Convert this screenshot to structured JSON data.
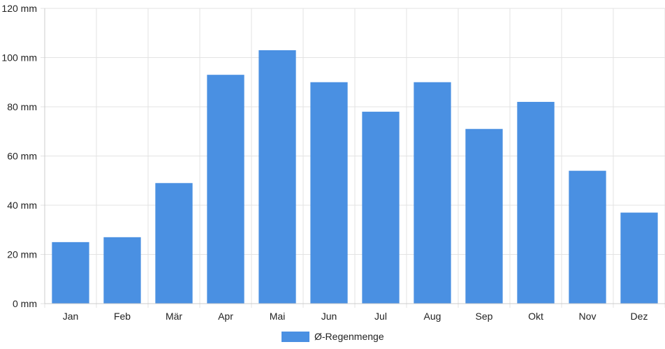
{
  "chart_data": {
    "type": "bar",
    "categories": [
      "Jan",
      "Feb",
      "Mär",
      "Apr",
      "Mai",
      "Jun",
      "Jul",
      "Aug",
      "Sep",
      "Okt",
      "Nov",
      "Dez"
    ],
    "series": [
      {
        "name": "Ø-Regenmenge",
        "color": "#4a90e2",
        "values": [
          25,
          27,
          49,
          93,
          103,
          90,
          78,
          90,
          71,
          82,
          54,
          37
        ]
      }
    ],
    "y_ticks": [
      "0 mm",
      "20 mm",
      "40 mm",
      "60 mm",
      "80 mm",
      "100 mm",
      "120 mm"
    ],
    "ylim": [
      0,
      120
    ],
    "grid": true,
    "legend_position": "bottom-center"
  }
}
